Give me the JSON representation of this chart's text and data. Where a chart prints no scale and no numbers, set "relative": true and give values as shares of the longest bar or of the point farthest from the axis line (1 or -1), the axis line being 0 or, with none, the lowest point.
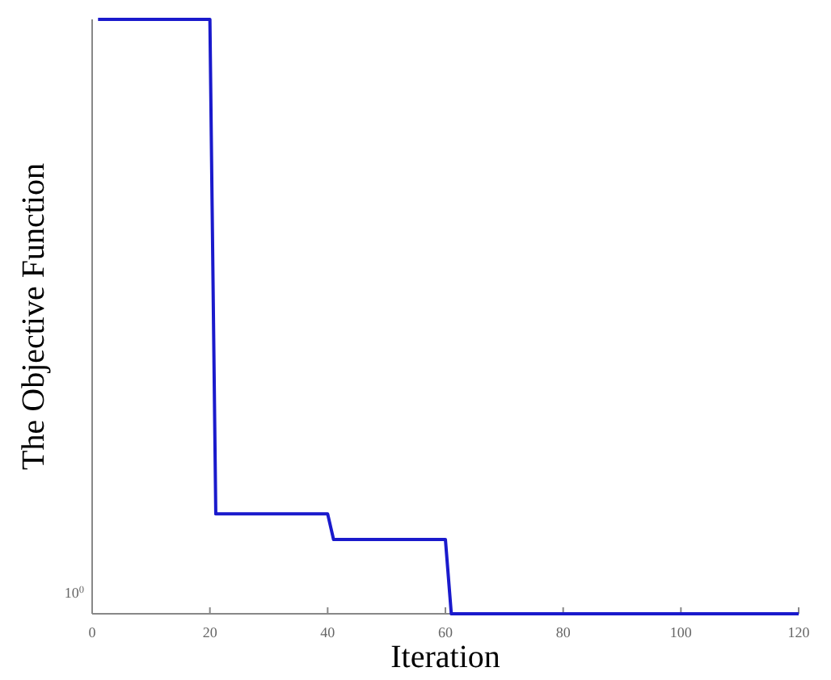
{
  "chart_data": {
    "type": "line",
    "xlabel": "Iteration",
    "ylabel": "The Objective Function",
    "relative": true,
    "annotations": [
      "10$^{0}$"
    ],
    "x": [
      1,
      20,
      21,
      40,
      41,
      60,
      61,
      120
    ],
    "series": [
      {
        "color": "#1a1acc",
        "values": [
          1,
          1,
          0.168,
          0.168,
          0.125,
          0.125,
          0,
          0
        ]
      }
    ],
    "xlim": [
      0,
      120
    ],
    "xticks": [
      0,
      20,
      40,
      60,
      80,
      100,
      120
    ],
    "grid": false,
    "marker": "none",
    "line_style": "solid"
  }
}
